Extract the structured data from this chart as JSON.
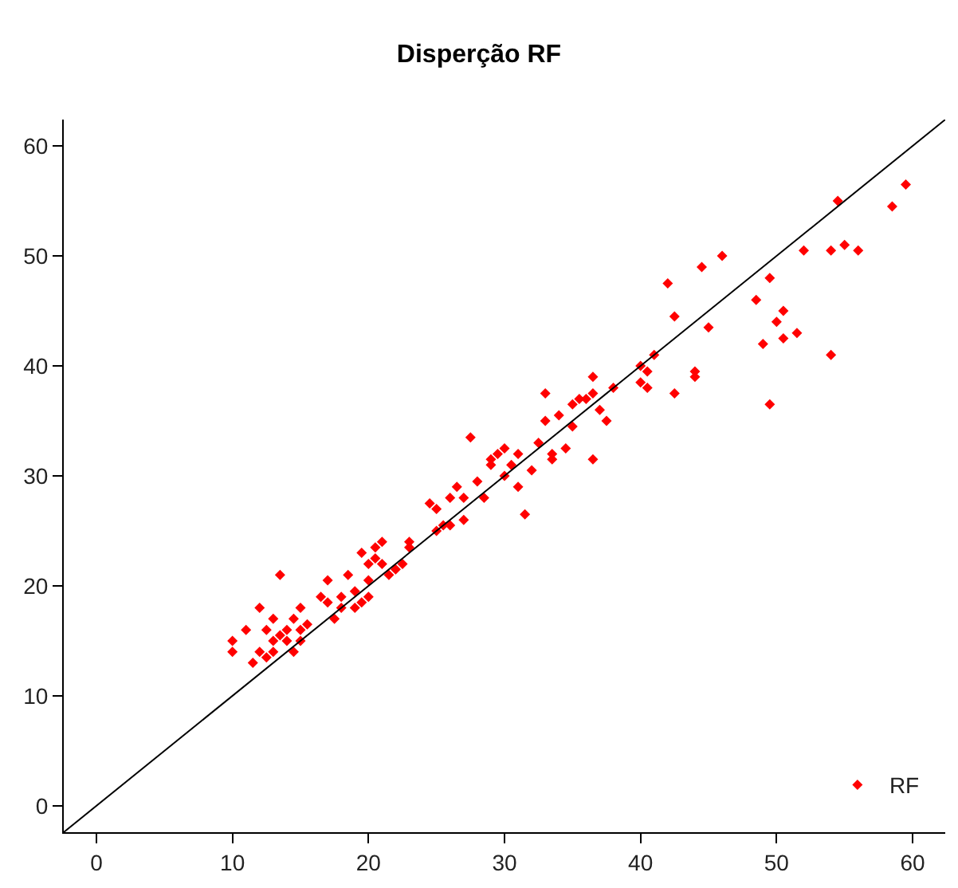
{
  "chart_data": {
    "type": "scatter",
    "title": "Disperção RF",
    "xlim": [
      -2.4,
      62.4
    ],
    "ylim": [
      -2.4,
      62.4
    ],
    "xticks": [
      0,
      10,
      20,
      30,
      40,
      50,
      60
    ],
    "yticks": [
      0,
      10,
      20,
      30,
      40,
      50,
      60
    ],
    "legend": "bottom right",
    "series": [
      {
        "name": "RF",
        "color": "#ff0000",
        "marker": "diamond",
        "x": [
          10,
          10,
          11,
          11.5,
          12,
          12,
          12.5,
          12.5,
          13,
          13,
          13,
          13.5,
          13.5,
          14,
          14,
          14.5,
          14.5,
          15,
          15,
          15,
          15.5,
          16.5,
          17,
          17,
          17.5,
          18,
          18,
          18.5,
          19,
          19,
          19.5,
          19.5,
          20,
          20,
          20,
          20.5,
          20.5,
          21,
          21,
          21.5,
          22,
          22.5,
          23,
          23,
          24.5,
          25,
          25,
          25.5,
          26,
          26,
          26.5,
          27,
          27,
          27.5,
          28,
          28.5,
          29,
          29,
          29.5,
          30,
          30,
          30.5,
          31,
          31,
          31.5,
          32,
          32.5,
          33,
          33,
          33.5,
          33.5,
          34,
          34.5,
          35,
          35,
          35.5,
          36,
          36.5,
          36.5,
          36.5,
          37,
          37.5,
          38,
          40,
          40,
          40.5,
          40.5,
          41,
          42,
          42.5,
          42.5,
          44,
          44,
          44.5,
          45,
          46,
          48.5,
          49,
          49.5,
          49.5,
          50,
          50.5,
          50.5,
          51.5,
          52,
          54,
          54,
          54.5,
          55,
          56,
          58.5,
          59.5
        ],
        "values": [
          15,
          14,
          16,
          13,
          14,
          18,
          16,
          13.5,
          17,
          15,
          14,
          21,
          15.5,
          15,
          16,
          14,
          17,
          16,
          18,
          15,
          16.5,
          19,
          20.5,
          18.5,
          17,
          19,
          18,
          21,
          18,
          19.5,
          23,
          18.5,
          19,
          20.5,
          22,
          23.5,
          22.5,
          22,
          24,
          21,
          21.5,
          22,
          24,
          23.5,
          27.5,
          27,
          25,
          25.5,
          28,
          25.5,
          29,
          28,
          26,
          33.5,
          29.5,
          28,
          31.5,
          31,
          32,
          30,
          32.5,
          31,
          32,
          29,
          26.5,
          30.5,
          33,
          37.5,
          35,
          32,
          31.5,
          35.5,
          32.5,
          36.5,
          34.5,
          37,
          37,
          39,
          37.5,
          31.5,
          36,
          35,
          38,
          40,
          38.5,
          38,
          39.5,
          41,
          47.5,
          44.5,
          37.5,
          39.5,
          39,
          49,
          43.5,
          50,
          46,
          42,
          48,
          36.5,
          44,
          42.5,
          45,
          43,
          50.5,
          41,
          50.5,
          55,
          51,
          50.5,
          54.5,
          56.5
        ]
      },
      {
        "type": "line",
        "color": "#000000",
        "x": [
          -2.4,
          62.4
        ],
        "values": [
          -2.4,
          62.4
        ]
      }
    ]
  }
}
